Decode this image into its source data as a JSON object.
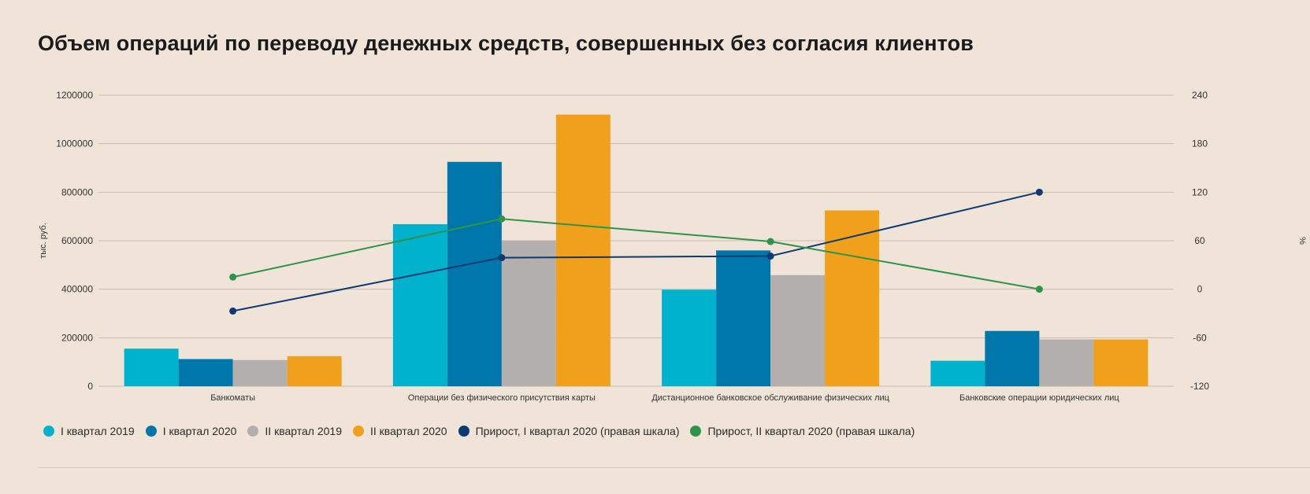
{
  "chart_data": {
    "type": "bar",
    "title": "Объем операций по переводу денежных средств, совершенных без согласия клиентов",
    "ylabel": "тыс. руб.",
    "y2label": "%",
    "ylim": [
      0,
      1200000
    ],
    "y2lim": [
      -120,
      240
    ],
    "yticks": [
      "0",
      "200000",
      "400000",
      "600000",
      "800000",
      "1000000",
      "1200000"
    ],
    "y2ticks": [
      "-120",
      "-60",
      "0",
      "60",
      "120",
      "180",
      "240"
    ],
    "categories": [
      "Банкоматы",
      "Операции без физического присутствия карты",
      "Дистанционное банковское обслуживание физических лиц",
      "Банковские операции юридических лиц"
    ],
    "series": [
      {
        "name": "I квартал 2019",
        "kind": "bar",
        "color": "#00b2cc",
        "values": [
          155000,
          668000,
          398000,
          105000
        ]
      },
      {
        "name": "I квартал 2020",
        "kind": "bar",
        "color": "#0077aa",
        "values": [
          112000,
          925000,
          560000,
          228000
        ]
      },
      {
        "name": "II квартал 2019",
        "kind": "bar",
        "color": "#b3afae",
        "values": [
          108000,
          600000,
          458000,
          193000
        ]
      },
      {
        "name": "II квартал 2020",
        "kind": "bar",
        "color": "#f0a01a",
        "values": [
          124000,
          1120000,
          725000,
          193000
        ]
      },
      {
        "name": "Прирост, I квартал 2020 (правая шкала)",
        "kind": "line",
        "axis": "right",
        "color": "#0d3a73",
        "values": [
          -27,
          39,
          41,
          120
        ]
      },
      {
        "name": "Прирост, II квартал 2020 (правая шкала)",
        "kind": "line",
        "axis": "right",
        "color": "#2e9448",
        "values": [
          15,
          87,
          59,
          0
        ]
      }
    ],
    "grid": true,
    "legend_position": "bottom"
  }
}
